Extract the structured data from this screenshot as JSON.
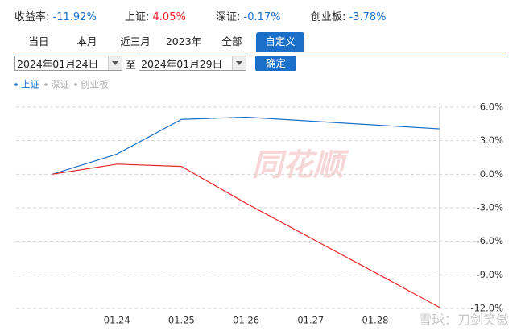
{
  "summary": [
    {
      "label": "收益率:",
      "value": "-11.92%",
      "color": "#1a6fc9"
    },
    {
      "label": "上证:",
      "value": "4.05%",
      "color": "#e8262a"
    },
    {
      "label": "深证:",
      "value": "-0.17%",
      "color": "#1a6fc9"
    },
    {
      "label": "创业板:",
      "value": "-3.78%",
      "color": "#1a6fc9"
    }
  ],
  "tabs": [
    "当日",
    "本月",
    "近三月",
    "2023年",
    "全部",
    "自定义"
  ],
  "active_tab": 5,
  "date_from": "2024年01月24日",
  "date_separator": "至",
  "date_to": "2024年01月29日",
  "confirm": "确定",
  "watermark": "同花顺",
  "credit": "雪球：刀剑笑傲",
  "chart_data": {
    "type": "line",
    "categories": [
      null,
      "01.24",
      "01.25",
      "01.26",
      "01.27",
      "01.28",
      null
    ],
    "series": [
      {
        "name": "上证",
        "color": "#1a6fc9",
        "values": [
          0,
          1.8,
          4.9,
          5.1,
          4.75,
          4.4,
          4.05
        ]
      },
      {
        "color": "#e8262a",
        "values": [
          0,
          0.9,
          0.7,
          -2.6,
          -5.7,
          -8.8,
          -11.92
        ]
      }
    ],
    "hidden_series": [
      {
        "name": "深证",
        "color": "#aaaaaa"
      },
      {
        "name": "创业板",
        "color": "#aaaaaa"
      }
    ],
    "ylim": [
      -12,
      6
    ],
    "yticks": [
      {
        "value": 6,
        "label": "6.0%"
      },
      {
        "value": 3,
        "label": "3.0%"
      },
      {
        "value": 0,
        "label": "0.0%"
      },
      {
        "value": -3,
        "label": "-3.0%"
      },
      {
        "value": -6,
        "label": "-6.0%"
      },
      {
        "value": -9,
        "label": "-9.0%"
      },
      {
        "value": -12,
        "label": "-12.0%"
      }
    ],
    "grid": true
  }
}
